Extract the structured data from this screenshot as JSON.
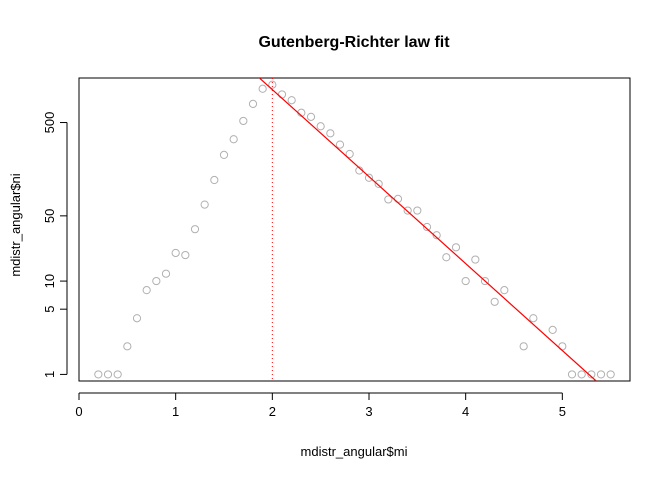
{
  "chart_data": {
    "type": "scatter",
    "title": "Gutenberg-Richter law fit",
    "xlabel": "mdistr_angular$mi",
    "ylabel": "mdistr_angular$ni",
    "y_scale": "log",
    "xlim": [
      0,
      5.7
    ],
    "ylim": [
      0.85,
      1500
    ],
    "x_ticks": [
      0,
      1,
      2,
      3,
      4,
      5
    ],
    "x_tick_labels": [
      "0",
      "1",
      "2",
      "3",
      "4",
      "5"
    ],
    "y_ticks": [
      1,
      5,
      10,
      50,
      500
    ],
    "y_tick_labels": [
      "1",
      "5",
      "10",
      "50",
      "500"
    ],
    "grid": false,
    "points": {
      "x": [
        0.2,
        0.3,
        0.4,
        0.5,
        0.6,
        0.7,
        0.8,
        0.9,
        1.0,
        1.1,
        1.2,
        1.3,
        1.4,
        1.5,
        1.6,
        1.7,
        1.8,
        1.9,
        2.0,
        2.1,
        2.2,
        2.3,
        2.4,
        2.5,
        2.6,
        2.7,
        2.8,
        2.9,
        3.0,
        3.1,
        3.2,
        3.3,
        3.4,
        3.5,
        3.6,
        3.7,
        3.8,
        3.9,
        4.0,
        4.1,
        4.2,
        4.3,
        4.4,
        4.6,
        4.7,
        4.9,
        5.0,
        5.1,
        5.2,
        5.3,
        5.4,
        5.5
      ],
      "y": [
        1,
        1,
        1,
        2,
        4,
        8,
        10,
        12,
        20,
        19,
        36,
        66,
        121,
        225,
        331,
        520,
        792,
        1150,
        1271,
        1000,
        867,
        636,
        575,
        456,
        383,
        290,
        230,
        153,
        128,
        110,
        75,
        76,
        57,
        57,
        38,
        31,
        18,
        23,
        10,
        17,
        10,
        6,
        8,
        2,
        4,
        3,
        2,
        1,
        1,
        1,
        1,
        1
      ],
      "color": "#b0b0b0"
    },
    "fit_line": {
      "x": [
        1.8,
        5.35
      ],
      "y": [
        1730,
        0.85
      ],
      "color": "#ff0000"
    },
    "vline": {
      "x": 2.0,
      "color": "#ff0000",
      "style": "dotted"
    }
  }
}
